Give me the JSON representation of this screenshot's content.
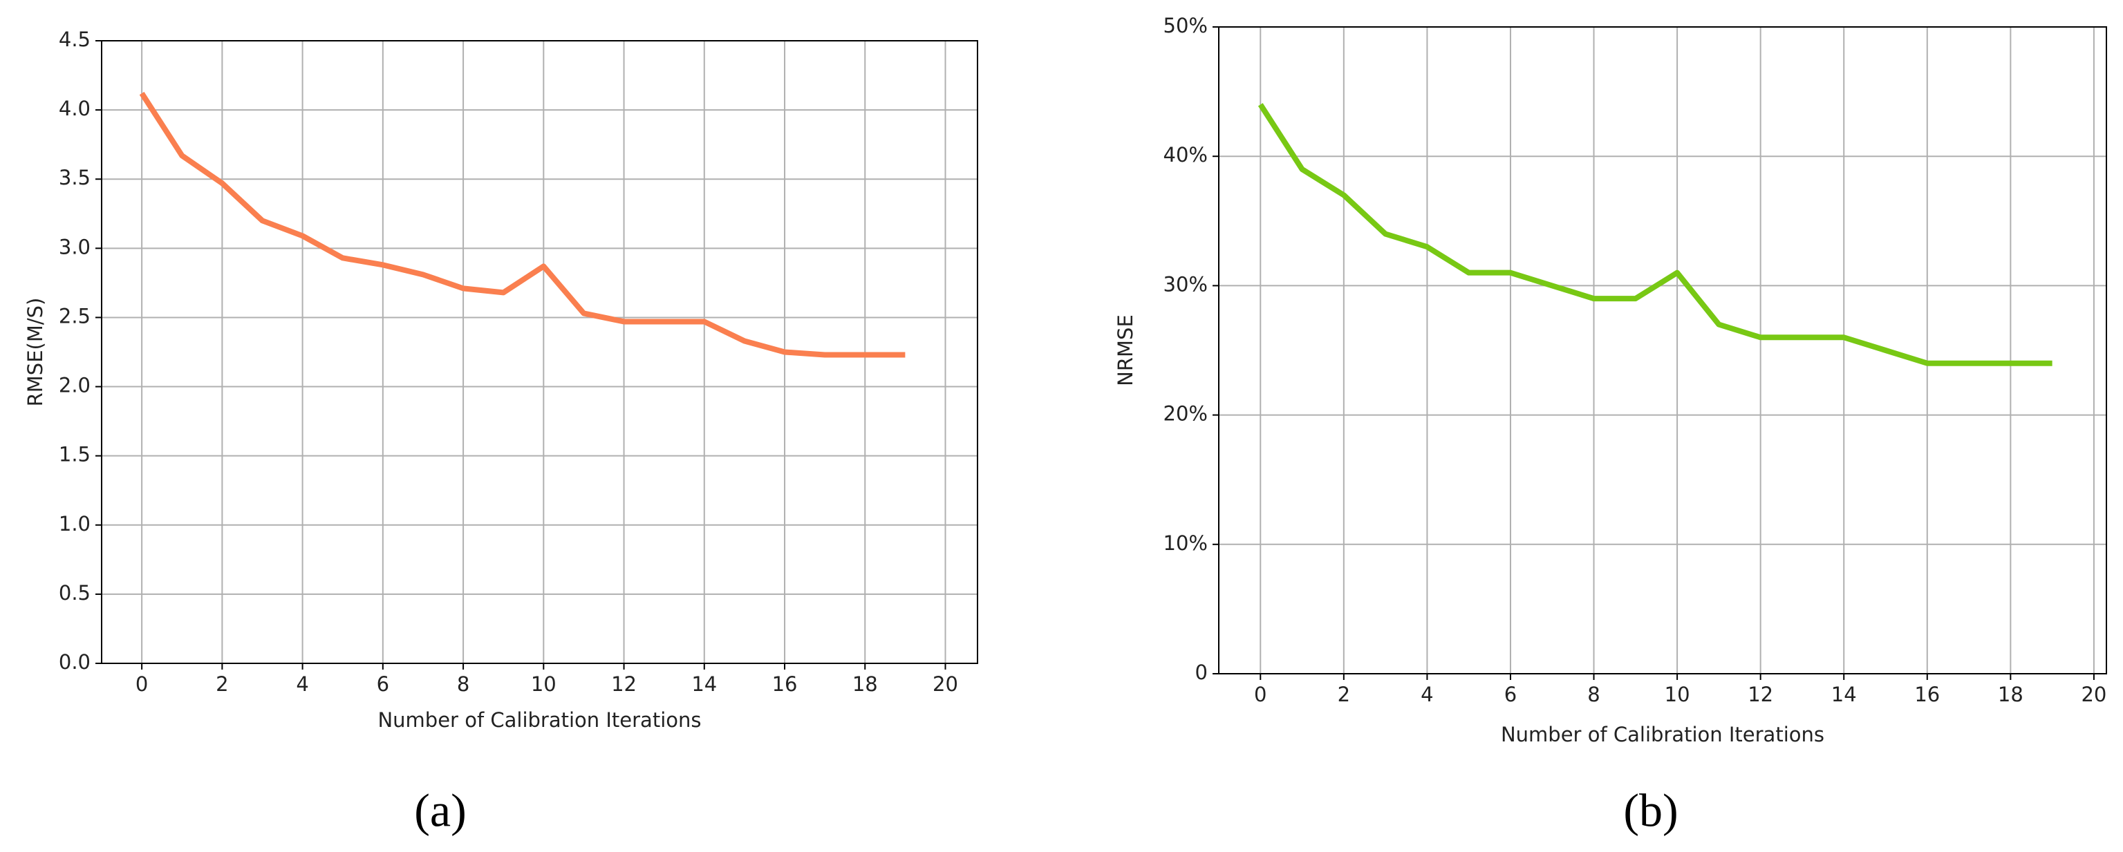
{
  "chart_data": [
    {
      "type": "line",
      "caption": "(a)",
      "x_label": "Number of Calibration Iterations",
      "y_label": "RMSE(M/S)",
      "x": [
        0,
        1,
        2,
        3,
        4,
        5,
        6,
        7,
        8,
        9,
        10,
        11,
        12,
        13,
        14,
        15,
        16,
        17,
        18,
        19
      ],
      "values": [
        4.12,
        3.67,
        3.47,
        3.2,
        3.09,
        2.93,
        2.88,
        2.81,
        2.71,
        2.68,
        2.87,
        2.53,
        2.47,
        2.47,
        2.47,
        2.33,
        2.25,
        2.23,
        2.23,
        2.23
      ],
      "color": "#fa7f4f",
      "xlim": [
        -1,
        20.8
      ],
      "ylim": [
        0,
        4.5
      ],
      "xticks": [
        0,
        2,
        4,
        6,
        8,
        10,
        12,
        14,
        16,
        18,
        20
      ],
      "yticks": [
        {
          "value": 0,
          "label": "0.0"
        },
        0.5,
        {
          "value": 1,
          "label": "1.0"
        },
        1.5,
        {
          "value": 2,
          "label": "2.0"
        },
        2.5,
        {
          "value": 3,
          "label": "3.0"
        },
        3.5,
        {
          "value": 4,
          "label": "4.0"
        },
        4.5
      ],
      "grid": true
    },
    {
      "type": "line",
      "caption": "(b)",
      "x_label": "Number of Calibration Iterations",
      "y_label": "NRMSE",
      "x": [
        0,
        1,
        2,
        3,
        4,
        5,
        6,
        7,
        8,
        9,
        10,
        11,
        12,
        13,
        14,
        15,
        16,
        17,
        18,
        19
      ],
      "values": [
        44,
        39,
        37,
        34,
        33,
        31,
        31,
        30,
        29,
        29,
        31,
        27,
        26,
        26,
        26,
        25,
        24,
        24,
        24,
        24
      ],
      "color": "#78c814",
      "xlim": [
        -1,
        20.3
      ],
      "ylim": [
        0,
        50
      ],
      "xticks": [
        0,
        2,
        4,
        6,
        8,
        10,
        12,
        14,
        16,
        18,
        20
      ],
      "yticks": [
        0,
        {
          "value": 10,
          "label": "10%"
        },
        {
          "value": 20,
          "label": "20%"
        },
        {
          "value": 30,
          "label": "30%"
        },
        {
          "value": 40,
          "label": "40%"
        },
        {
          "value": 50,
          "label": "50%"
        }
      ],
      "grid": true
    }
  ]
}
